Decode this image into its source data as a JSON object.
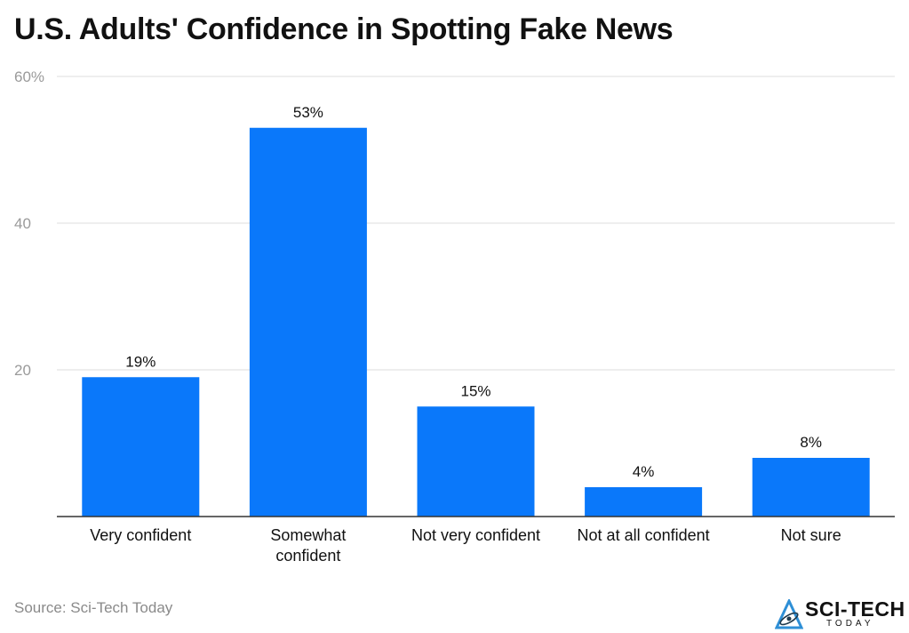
{
  "chart_data": {
    "type": "bar",
    "title": "U.S. Adults' Confidence in Spotting Fake News",
    "categories": [
      "Very confident",
      "Somewhat confident",
      "Not very confident",
      "Not at all confident",
      "Not sure"
    ],
    "category_lines": [
      [
        "Very confident"
      ],
      [
        "Somewhat",
        "confident"
      ],
      [
        "Not very confident"
      ],
      [
        "Not at all confident"
      ],
      [
        "Not sure"
      ]
    ],
    "values": [
      19,
      53,
      15,
      4,
      8
    ],
    "value_labels": [
      "19%",
      "53%",
      "15%",
      "4%",
      "8%"
    ],
    "yticks": [
      20,
      40,
      60
    ],
    "ytick_labels": [
      "20",
      "40",
      "60%"
    ],
    "ylim": [
      0,
      60
    ],
    "xlabel": "",
    "ylabel": "",
    "grid": true,
    "bar_color": "#0a78fa"
  },
  "source": "Source: Sci-Tech Today",
  "logo": {
    "text": "SCI-TECH",
    "subtext": "TODAY",
    "icon": "atom-triangle-icon",
    "accent": "#2e8fd6"
  }
}
